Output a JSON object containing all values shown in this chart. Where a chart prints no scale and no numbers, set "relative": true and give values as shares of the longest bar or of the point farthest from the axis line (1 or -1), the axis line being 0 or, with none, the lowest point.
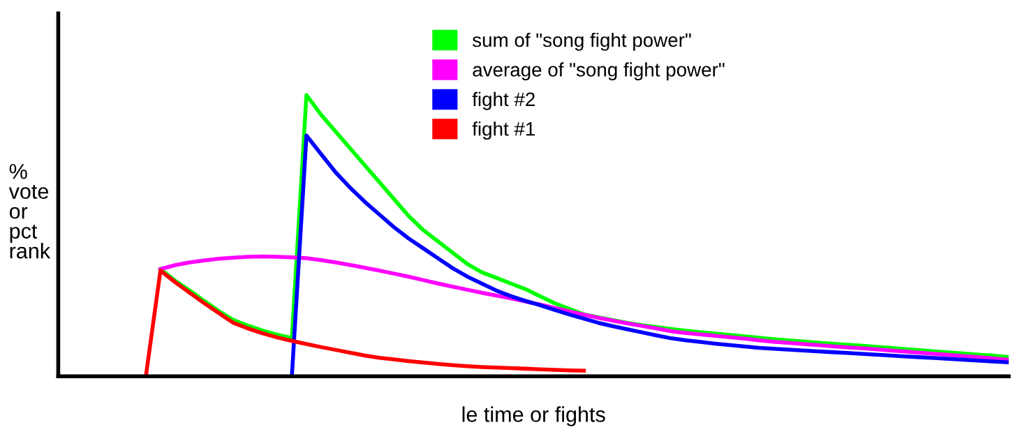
{
  "chart_data": {
    "type": "line",
    "relative": true,
    "xlabel": "le time or fights",
    "ylabel": "%\nvote\nor\npct\nrank",
    "categories": [
      null,
      null,
      null,
      null,
      null,
      null,
      null,
      null,
      null,
      null,
      null,
      null,
      null,
      null,
      null,
      null,
      null,
      null,
      null,
      null,
      null,
      null,
      null,
      null,
      null,
      null,
      null,
      null,
      null,
      null,
      null,
      null,
      null,
      null,
      null,
      null,
      null,
      null,
      null,
      null,
      null,
      null,
      null,
      null,
      null,
      null,
      null,
      null,
      null,
      null,
      null,
      null,
      null,
      null,
      null,
      null,
      null,
      null,
      null,
      null
    ],
    "legend": "top right",
    "grid": false,
    "series": [
      {
        "name": "sum of \"song fight power\"",
        "color": "#00ff00",
        "values": [
          null,
          0.381,
          0.34,
          0.305,
          0.268,
          0.232,
          0.2,
          0.18,
          0.163,
          0.148,
          0.136,
          1.0,
          0.93,
          0.87,
          0.81,
          0.75,
          0.69,
          0.63,
          0.57,
          0.52,
          0.48,
          0.44,
          0.4,
          0.37,
          0.35,
          0.33,
          0.31,
          0.285,
          0.26,
          0.24,
          0.22,
          0.21,
          0.2,
          0.19,
          0.182,
          0.175,
          0.168,
          0.162,
          0.157,
          0.152,
          0.147,
          0.142,
          0.137,
          0.132,
          0.128,
          0.124,
          0.12,
          0.116,
          0.112,
          0.109,
          0.105,
          0.101,
          0.097,
          0.093,
          0.089,
          0.085,
          0.081,
          0.077,
          0.074,
          0.069
        ]
      },
      {
        "name": "average of \"song fight power\"",
        "color": "#ff00ff",
        "values": [
          null,
          0.381,
          0.395,
          0.405,
          0.412,
          0.418,
          0.422,
          0.425,
          0.426,
          0.425,
          0.423,
          0.42,
          0.413,
          0.405,
          0.396,
          0.386,
          0.376,
          0.365,
          0.354,
          0.342,
          0.33,
          0.319,
          0.308,
          0.297,
          0.287,
          0.277,
          0.266,
          0.255,
          0.243,
          0.231,
          0.219,
          0.208,
          0.198,
          0.188,
          0.179,
          0.17,
          0.16,
          0.154,
          0.149,
          0.144,
          0.139,
          0.134,
          0.128,
          0.123,
          0.119,
          0.115,
          0.111,
          0.107,
          0.103,
          0.1,
          0.096,
          0.092,
          0.088,
          0.084,
          0.08,
          0.076,
          0.072,
          0.068,
          0.064,
          0.059
        ]
      },
      {
        "name": "fight #2",
        "color": "#0000ff",
        "values": [
          null,
          null,
          null,
          null,
          null,
          null,
          null,
          null,
          null,
          null,
          0,
          0.856,
          0.79,
          0.725,
          0.67,
          0.62,
          0.575,
          0.53,
          0.49,
          0.455,
          0.42,
          0.385,
          0.355,
          0.33,
          0.305,
          0.285,
          0.268,
          0.253,
          0.236,
          0.22,
          0.205,
          0.19,
          0.178,
          0.167,
          0.156,
          0.145,
          0.135,
          0.128,
          0.122,
          0.116,
          0.111,
          0.106,
          0.101,
          0.098,
          0.095,
          0.092,
          0.089,
          0.086,
          0.083,
          0.08,
          0.077,
          0.074,
          0.071,
          0.068,
          0.065,
          0.062,
          0.059,
          0.056,
          0.053,
          0.05
        ]
      },
      {
        "name": "fight #1",
        "color": "#ff0000",
        "values": [
          0,
          0.376,
          0.335,
          0.297,
          0.26,
          0.225,
          0.19,
          0.17,
          0.153,
          0.138,
          0.126,
          0.115,
          0.104,
          0.094,
          0.084,
          0.074,
          0.066,
          0.06,
          0.054,
          0.049,
          0.044,
          0.04,
          0.036,
          0.033,
          0.031,
          0.029,
          0.027,
          0.025,
          0.023,
          0.021,
          0.02,
          null,
          null,
          null,
          null,
          null,
          null,
          null,
          null,
          null,
          null,
          null,
          null,
          null,
          null,
          null,
          null,
          null,
          null,
          null,
          null,
          null,
          null,
          null,
          null,
          null,
          null,
          null,
          null,
          null
        ]
      }
    ]
  }
}
